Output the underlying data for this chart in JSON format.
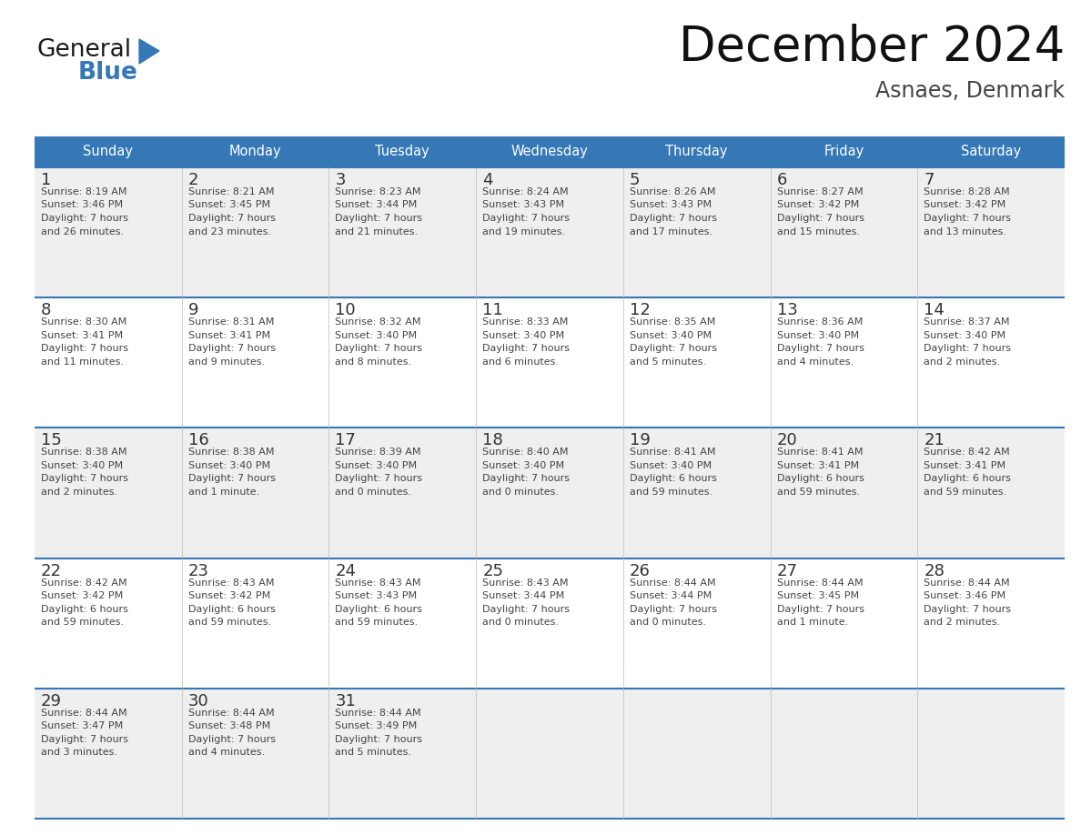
{
  "title": "December 2024",
  "subtitle": "Asnaes, Denmark",
  "header_color": "#3578B5",
  "header_text_color": "#FFFFFF",
  "day_names": [
    "Sunday",
    "Monday",
    "Tuesday",
    "Wednesday",
    "Thursday",
    "Friday",
    "Saturday"
  ],
  "bg_color": "#FFFFFF",
  "row_bg": [
    "#EFEFEF",
    "#FFFFFF",
    "#EFEFEF",
    "#FFFFFF",
    "#EFEFEF"
  ],
  "grid_line_color": "#3578B5",
  "day_number_color": "#333333",
  "text_color": "#444444",
  "logo_general_color": "#1A1A1A",
  "logo_blue_color": "#3578B5",
  "num_rows": 5,
  "days": [
    {
      "date": 1,
      "row": 0,
      "col": 0,
      "sunrise": "8:19 AM",
      "sunset": "3:46 PM",
      "daylight_h": "7 hours",
      "daylight_m": "and 26 minutes."
    },
    {
      "date": 2,
      "row": 0,
      "col": 1,
      "sunrise": "8:21 AM",
      "sunset": "3:45 PM",
      "daylight_h": "7 hours",
      "daylight_m": "and 23 minutes."
    },
    {
      "date": 3,
      "row": 0,
      "col": 2,
      "sunrise": "8:23 AM",
      "sunset": "3:44 PM",
      "daylight_h": "7 hours",
      "daylight_m": "and 21 minutes."
    },
    {
      "date": 4,
      "row": 0,
      "col": 3,
      "sunrise": "8:24 AM",
      "sunset": "3:43 PM",
      "daylight_h": "7 hours",
      "daylight_m": "and 19 minutes."
    },
    {
      "date": 5,
      "row": 0,
      "col": 4,
      "sunrise": "8:26 AM",
      "sunset": "3:43 PM",
      "daylight_h": "7 hours",
      "daylight_m": "and 17 minutes."
    },
    {
      "date": 6,
      "row": 0,
      "col": 5,
      "sunrise": "8:27 AM",
      "sunset": "3:42 PM",
      "daylight_h": "7 hours",
      "daylight_m": "and 15 minutes."
    },
    {
      "date": 7,
      "row": 0,
      "col": 6,
      "sunrise": "8:28 AM",
      "sunset": "3:42 PM",
      "daylight_h": "7 hours",
      "daylight_m": "and 13 minutes."
    },
    {
      "date": 8,
      "row": 1,
      "col": 0,
      "sunrise": "8:30 AM",
      "sunset": "3:41 PM",
      "daylight_h": "7 hours",
      "daylight_m": "and 11 minutes."
    },
    {
      "date": 9,
      "row": 1,
      "col": 1,
      "sunrise": "8:31 AM",
      "sunset": "3:41 PM",
      "daylight_h": "7 hours",
      "daylight_m": "and 9 minutes."
    },
    {
      "date": 10,
      "row": 1,
      "col": 2,
      "sunrise": "8:32 AM",
      "sunset": "3:40 PM",
      "daylight_h": "7 hours",
      "daylight_m": "and 8 minutes."
    },
    {
      "date": 11,
      "row": 1,
      "col": 3,
      "sunrise": "8:33 AM",
      "sunset": "3:40 PM",
      "daylight_h": "7 hours",
      "daylight_m": "and 6 minutes."
    },
    {
      "date": 12,
      "row": 1,
      "col": 4,
      "sunrise": "8:35 AM",
      "sunset": "3:40 PM",
      "daylight_h": "7 hours",
      "daylight_m": "and 5 minutes."
    },
    {
      "date": 13,
      "row": 1,
      "col": 5,
      "sunrise": "8:36 AM",
      "sunset": "3:40 PM",
      "daylight_h": "7 hours",
      "daylight_m": "and 4 minutes."
    },
    {
      "date": 14,
      "row": 1,
      "col": 6,
      "sunrise": "8:37 AM",
      "sunset": "3:40 PM",
      "daylight_h": "7 hours",
      "daylight_m": "and 2 minutes."
    },
    {
      "date": 15,
      "row": 2,
      "col": 0,
      "sunrise": "8:38 AM",
      "sunset": "3:40 PM",
      "daylight_h": "7 hours",
      "daylight_m": "and 2 minutes."
    },
    {
      "date": 16,
      "row": 2,
      "col": 1,
      "sunrise": "8:38 AM",
      "sunset": "3:40 PM",
      "daylight_h": "7 hours",
      "daylight_m": "and 1 minute."
    },
    {
      "date": 17,
      "row": 2,
      "col": 2,
      "sunrise": "8:39 AM",
      "sunset": "3:40 PM",
      "daylight_h": "7 hours",
      "daylight_m": "and 0 minutes."
    },
    {
      "date": 18,
      "row": 2,
      "col": 3,
      "sunrise": "8:40 AM",
      "sunset": "3:40 PM",
      "daylight_h": "7 hours",
      "daylight_m": "and 0 minutes."
    },
    {
      "date": 19,
      "row": 2,
      "col": 4,
      "sunrise": "8:41 AM",
      "sunset": "3:40 PM",
      "daylight_h": "6 hours",
      "daylight_m": "and 59 minutes."
    },
    {
      "date": 20,
      "row": 2,
      "col": 5,
      "sunrise": "8:41 AM",
      "sunset": "3:41 PM",
      "daylight_h": "6 hours",
      "daylight_m": "and 59 minutes."
    },
    {
      "date": 21,
      "row": 2,
      "col": 6,
      "sunrise": "8:42 AM",
      "sunset": "3:41 PM",
      "daylight_h": "6 hours",
      "daylight_m": "and 59 minutes."
    },
    {
      "date": 22,
      "row": 3,
      "col": 0,
      "sunrise": "8:42 AM",
      "sunset": "3:42 PM",
      "daylight_h": "6 hours",
      "daylight_m": "and 59 minutes."
    },
    {
      "date": 23,
      "row": 3,
      "col": 1,
      "sunrise": "8:43 AM",
      "sunset": "3:42 PM",
      "daylight_h": "6 hours",
      "daylight_m": "and 59 minutes."
    },
    {
      "date": 24,
      "row": 3,
      "col": 2,
      "sunrise": "8:43 AM",
      "sunset": "3:43 PM",
      "daylight_h": "6 hours",
      "daylight_m": "and 59 minutes."
    },
    {
      "date": 25,
      "row": 3,
      "col": 3,
      "sunrise": "8:43 AM",
      "sunset": "3:44 PM",
      "daylight_h": "7 hours",
      "daylight_m": "and 0 minutes."
    },
    {
      "date": 26,
      "row": 3,
      "col": 4,
      "sunrise": "8:44 AM",
      "sunset": "3:44 PM",
      "daylight_h": "7 hours",
      "daylight_m": "and 0 minutes."
    },
    {
      "date": 27,
      "row": 3,
      "col": 5,
      "sunrise": "8:44 AM",
      "sunset": "3:45 PM",
      "daylight_h": "7 hours",
      "daylight_m": "and 1 minute."
    },
    {
      "date": 28,
      "row": 3,
      "col": 6,
      "sunrise": "8:44 AM",
      "sunset": "3:46 PM",
      "daylight_h": "7 hours",
      "daylight_m": "and 2 minutes."
    },
    {
      "date": 29,
      "row": 4,
      "col": 0,
      "sunrise": "8:44 AM",
      "sunset": "3:47 PM",
      "daylight_h": "7 hours",
      "daylight_m": "and 3 minutes."
    },
    {
      "date": 30,
      "row": 4,
      "col": 1,
      "sunrise": "8:44 AM",
      "sunset": "3:48 PM",
      "daylight_h": "7 hours",
      "daylight_m": "and 4 minutes."
    },
    {
      "date": 31,
      "row": 4,
      "col": 2,
      "sunrise": "8:44 AM",
      "sunset": "3:49 PM",
      "daylight_h": "7 hours",
      "daylight_m": "and 5 minutes."
    }
  ]
}
